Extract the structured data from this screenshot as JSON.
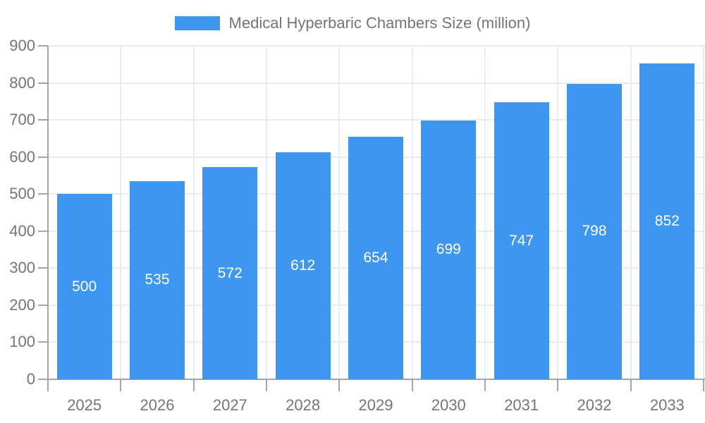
{
  "chart_data": {
    "type": "bar",
    "title": "Medical Hyperbaric Chambers Size (million)",
    "legend_position": "top",
    "categories": [
      "2025",
      "2026",
      "2027",
      "2028",
      "2029",
      "2030",
      "2031",
      "2032",
      "2033"
    ],
    "values": [
      500,
      535,
      572,
      612,
      654,
      699,
      747,
      798,
      852
    ],
    "xlabel": "",
    "ylabel": "",
    "ylim": [
      0,
      900
    ],
    "yticks": [
      0,
      100,
      200,
      300,
      400,
      500,
      600,
      700,
      800,
      900
    ],
    "grid": true,
    "value_labels_inside_bars": true
  },
  "colors": {
    "bar": "#3d97f0",
    "grid": "#ececec",
    "axis": "#a6a6a6",
    "text": "#757575",
    "value": "#ffffff"
  }
}
